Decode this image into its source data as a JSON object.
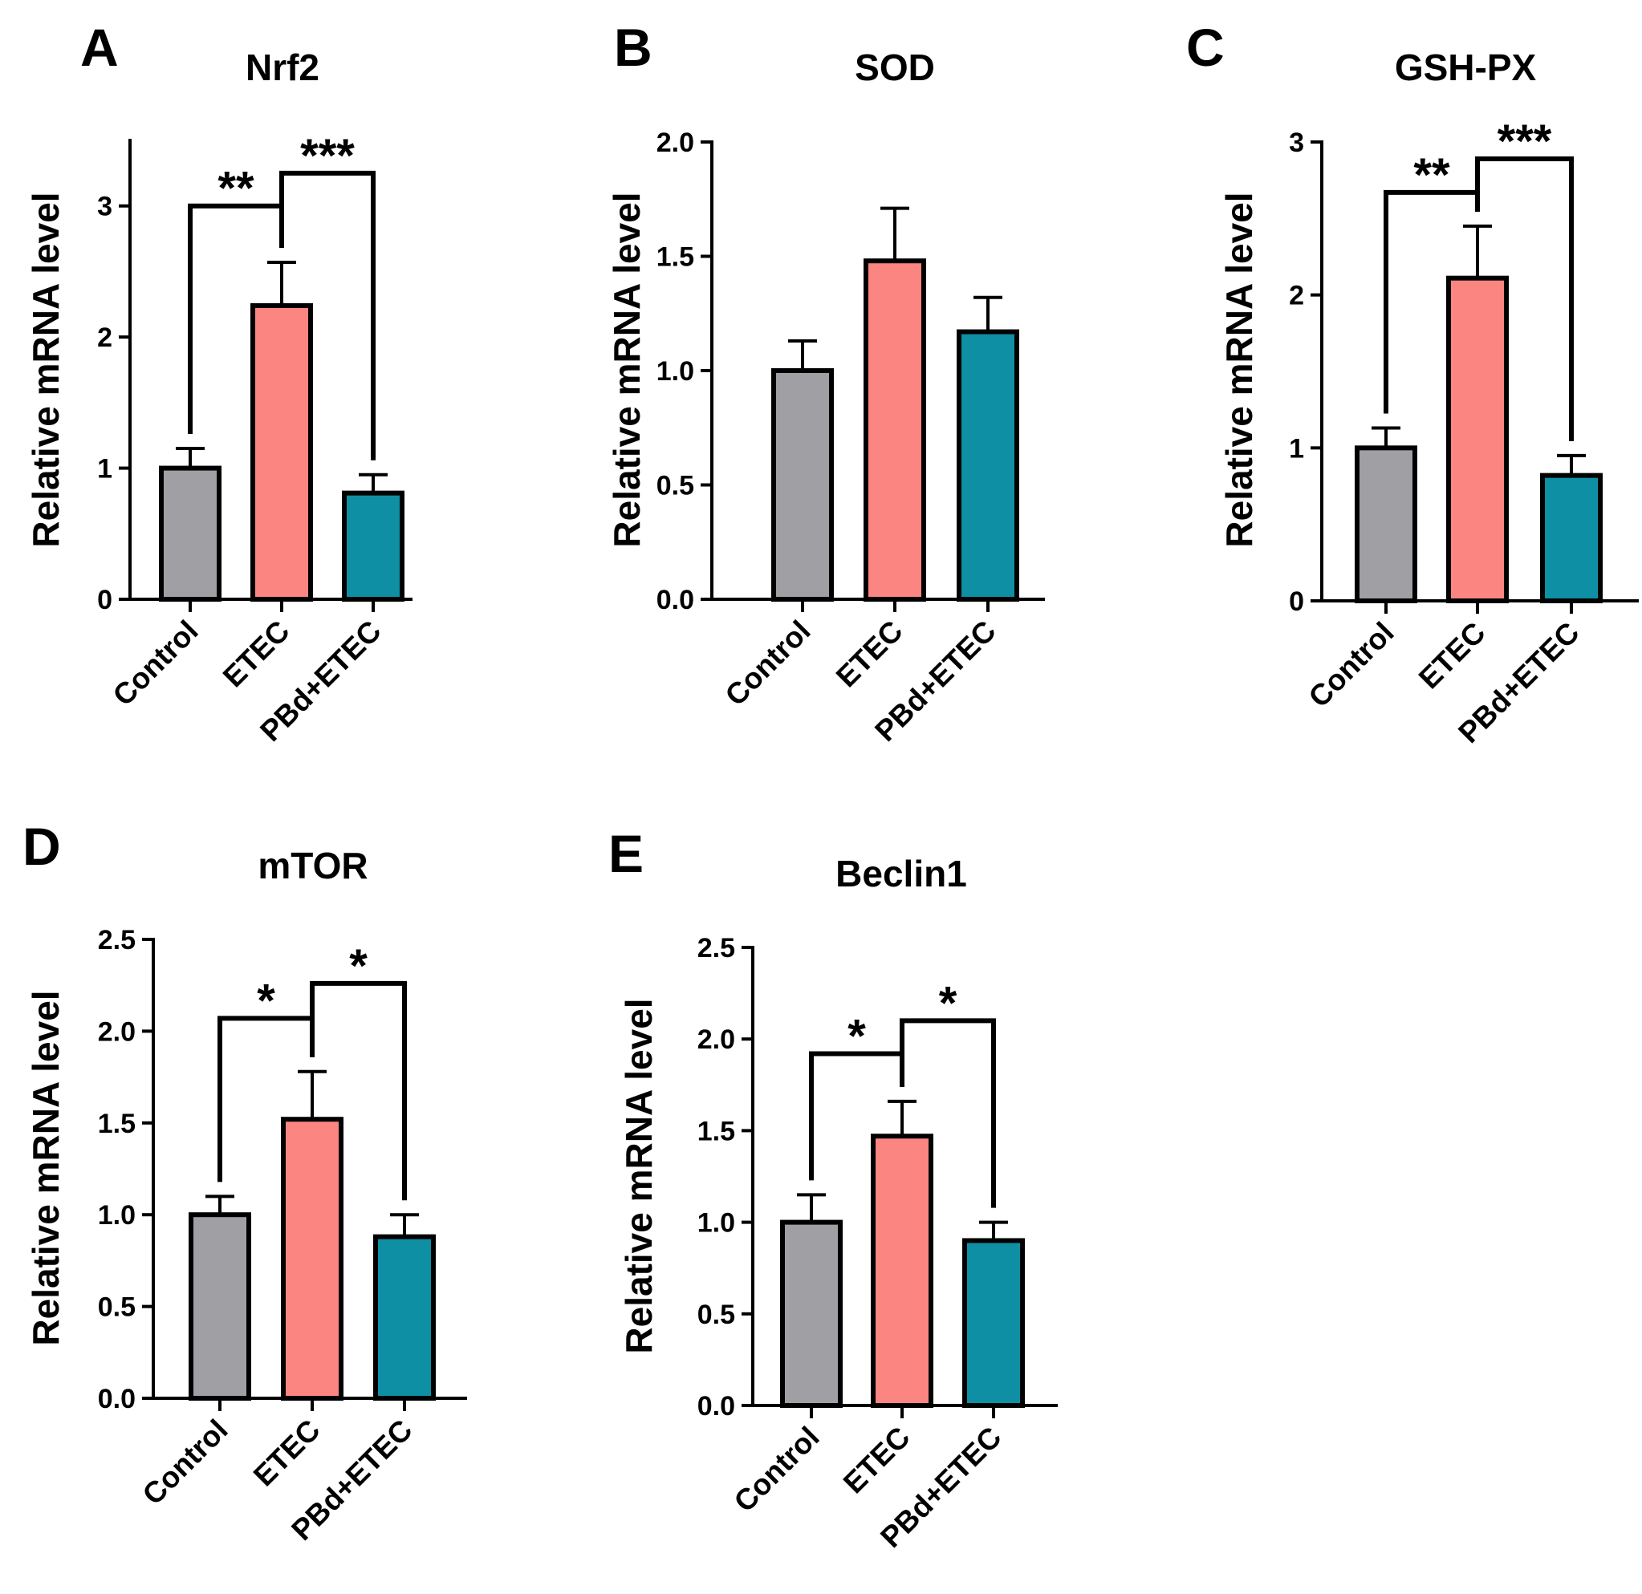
{
  "colors": {
    "control": "#a09fa4",
    "etec": "#fb8581",
    "pbd_etec": "#0e8fa4",
    "stroke": "#000000"
  },
  "chart_data": [
    {
      "type": "bar",
      "panel": "A",
      "title": "Nrf2",
      "ylabel": "Relative mRNA level",
      "categories": [
        "Control",
        "ETEC",
        "PBd+ETEC"
      ],
      "values": [
        1.0,
        2.24,
        0.81
      ],
      "errors": [
        0.15,
        0.33,
        0.14
      ],
      "ylim": [
        0,
        3.5
      ],
      "yticks": [
        0,
        1,
        2,
        3
      ],
      "ytick_labels": [
        "0",
        "1",
        "2",
        "3"
      ],
      "significance": [
        {
          "from": 0,
          "to": 1,
          "label": "**",
          "y": 3.0
        },
        {
          "from": 1,
          "to": 2,
          "label": "***",
          "y": 3.25
        }
      ]
    },
    {
      "type": "bar",
      "panel": "B",
      "title": "SOD",
      "ylabel": "Relative mRNA level",
      "categories": [
        "Control",
        "ETEC",
        "PBd+ETEC"
      ],
      "values": [
        1.0,
        1.48,
        1.17
      ],
      "errors": [
        0.13,
        0.23,
        0.15
      ],
      "ylim": [
        0,
        2.0
      ],
      "yticks": [
        0,
        0.5,
        1.0,
        1.5,
        2.0
      ],
      "ytick_labels": [
        "0.0",
        "0.5",
        "1.0",
        "1.5",
        "2.0"
      ],
      "significance": []
    },
    {
      "type": "bar",
      "panel": "C",
      "title": "GSH-PX",
      "ylabel": "Relative mRNA level",
      "categories": [
        "Control",
        "ETEC",
        "PBd+ETEC"
      ],
      "values": [
        1.0,
        2.11,
        0.82
      ],
      "errors": [
        0.13,
        0.34,
        0.13
      ],
      "ylim": [
        0,
        3.0
      ],
      "yticks": [
        0,
        1,
        2,
        3
      ],
      "ytick_labels": [
        "0",
        "1",
        "2",
        "3"
      ],
      "significance": [
        {
          "from": 0,
          "to": 1,
          "label": "**",
          "y": 2.67
        },
        {
          "from": 1,
          "to": 2,
          "label": "***",
          "y": 2.89
        }
      ]
    },
    {
      "type": "bar",
      "panel": "D",
      "title": "mTOR",
      "ylabel": "Relative mRNA level",
      "categories": [
        "Control",
        "ETEC",
        "PBd+ETEC"
      ],
      "values": [
        1.0,
        1.52,
        0.88
      ],
      "errors": [
        0.1,
        0.26,
        0.12
      ],
      "ylim": [
        0,
        2.5
      ],
      "yticks": [
        0,
        0.5,
        1.0,
        1.5,
        2.0,
        2.5
      ],
      "ytick_labels": [
        "0.0",
        "0.5",
        "1.0",
        "1.5",
        "2.0",
        "2.5"
      ],
      "significance": [
        {
          "from": 0,
          "to": 1,
          "label": "*",
          "y": 2.07
        },
        {
          "from": 1,
          "to": 2,
          "label": "*",
          "y": 2.26
        }
      ]
    },
    {
      "type": "bar",
      "panel": "E",
      "title": "Beclin1",
      "ylabel": "Relative mRNA level",
      "categories": [
        "Control",
        "ETEC",
        "PBd+ETEC"
      ],
      "values": [
        1.0,
        1.47,
        0.9
      ],
      "errors": [
        0.15,
        0.19,
        0.1
      ],
      "ylim": [
        0,
        2.5
      ],
      "yticks": [
        0,
        0.5,
        1.0,
        1.5,
        2.0,
        2.5
      ],
      "ytick_labels": [
        "0.0",
        "0.5",
        "1.0",
        "1.5",
        "2.0",
        "2.5"
      ],
      "significance": [
        {
          "from": 0,
          "to": 1,
          "label": "*",
          "y": 1.92
        },
        {
          "from": 1,
          "to": 2,
          "label": "*",
          "y": 2.1
        }
      ]
    }
  ]
}
